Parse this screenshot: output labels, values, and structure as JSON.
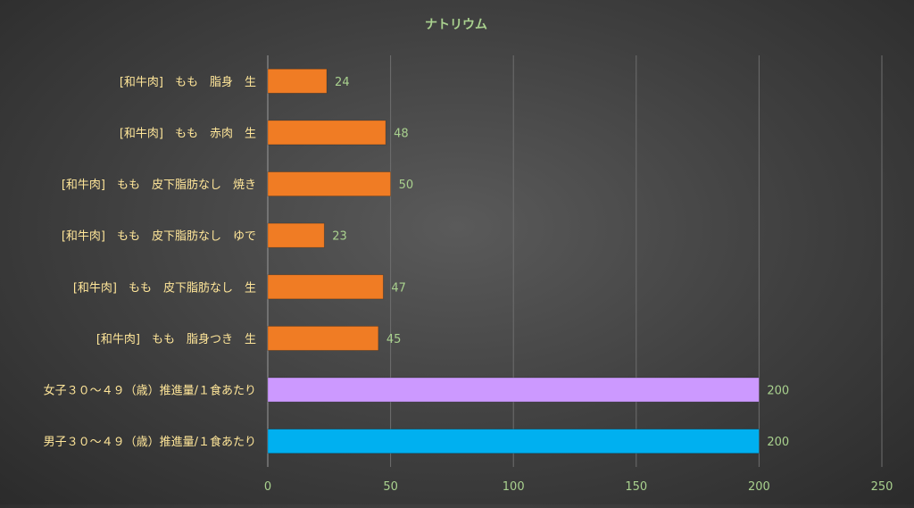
{
  "chart_data": {
    "type": "bar",
    "orientation": "horizontal",
    "title": "ナトリウム",
    "xlabel": "",
    "ylabel": "",
    "xlim": [
      0,
      250
    ],
    "xticks": [
      0,
      50,
      100,
      150,
      200,
      250
    ],
    "grid": true,
    "legend": "none",
    "categories": [
      "[和牛肉]　もも　脂身　生",
      "[和牛肉]　もも　赤肉　生",
      "[和牛肉]　もも　皮下脂肪なし　焼き",
      "[和牛肉]　もも　皮下脂肪なし　ゆで",
      "[和牛肉]　もも　皮下脂肪なし　生",
      "[和牛肉]　もも　脂身つき　生",
      "女子３０～４９（歳）推進量/１食あたり",
      "男子３０～４９（歳）推進量/１食あたり"
    ],
    "values": [
      24,
      48,
      50,
      23,
      47,
      45,
      200,
      200
    ],
    "bar_colors": [
      "#F07C24",
      "#F07C24",
      "#F07C24",
      "#F07C24",
      "#F07C24",
      "#F07C24",
      "#CC99FF",
      "#00B0F0"
    ],
    "colors": {
      "label_text": "#FFE699",
      "tick_text": "#A9D18E",
      "title_text": "#A9D18E",
      "gridline": "#6E6E6E",
      "axis_line": "#9A9A9A"
    }
  }
}
